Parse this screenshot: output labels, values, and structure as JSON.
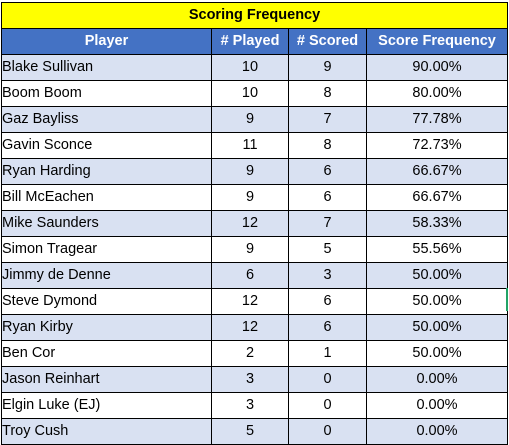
{
  "title": "Scoring Frequency",
  "headers": {
    "player": "Player",
    "played": "# Played",
    "scored": "# Scored",
    "frequency": "Score Frequency"
  },
  "rows": [
    {
      "player": "Blake Sullivan",
      "played": "10",
      "scored": "9",
      "frequency": "90.00%"
    },
    {
      "player": "Boom Boom",
      "played": "10",
      "scored": "8",
      "frequency": "80.00%"
    },
    {
      "player": "Gaz Bayliss",
      "played": "9",
      "scored": "7",
      "frequency": "77.78%"
    },
    {
      "player": "Gavin Sconce",
      "played": "11",
      "scored": "8",
      "frequency": "72.73%"
    },
    {
      "player": "Ryan Harding",
      "played": "9",
      "scored": "6",
      "frequency": "66.67%"
    },
    {
      "player": "Bill McEachen",
      "played": "9",
      "scored": "6",
      "frequency": "66.67%"
    },
    {
      "player": "Mike Saunders",
      "played": "12",
      "scored": "7",
      "frequency": "58.33%"
    },
    {
      "player": "Simon Tragear",
      "played": "9",
      "scored": "5",
      "frequency": "55.56%"
    },
    {
      "player": "Jimmy de Denne",
      "played": "6",
      "scored": "3",
      "frequency": "50.00%"
    },
    {
      "player": "Steve Dymond",
      "played": "12",
      "scored": "6",
      "frequency": "50.00%"
    },
    {
      "player": "Ryan Kirby",
      "played": "12",
      "scored": "6",
      "frequency": "50.00%"
    },
    {
      "player": "Ben Cor",
      "played": "2",
      "scored": "1",
      "frequency": "50.00%"
    },
    {
      "player": "Jason Reinhart",
      "played": "3",
      "scored": "0",
      "frequency": "0.00%"
    },
    {
      "player": "Elgin Luke (EJ)",
      "played": "3",
      "scored": "0",
      "frequency": "0.00%"
    },
    {
      "player": "Troy Cush",
      "played": "5",
      "scored": "0",
      "frequency": "0.00%"
    }
  ],
  "colors": {
    "title_fill": "#ffff00",
    "header_fill": "#4472c4",
    "band_fill": "#d9e1f2",
    "selection_edge": "#21a366"
  }
}
